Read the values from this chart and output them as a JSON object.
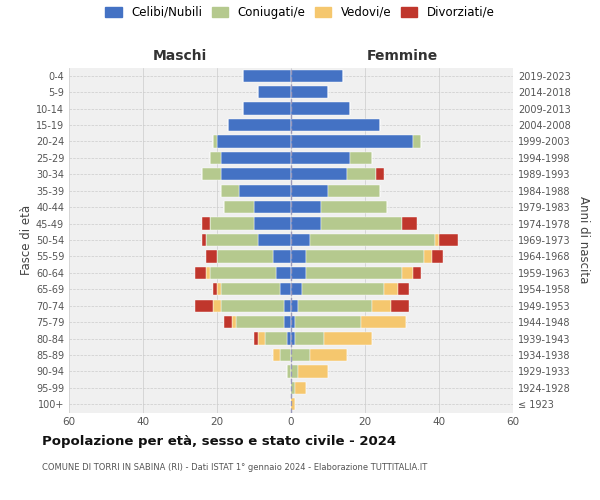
{
  "age_groups": [
    "100+",
    "95-99",
    "90-94",
    "85-89",
    "80-84",
    "75-79",
    "70-74",
    "65-69",
    "60-64",
    "55-59",
    "50-54",
    "45-49",
    "40-44",
    "35-39",
    "30-34",
    "25-29",
    "20-24",
    "15-19",
    "10-14",
    "5-9",
    "0-4"
  ],
  "birth_years": [
    "≤ 1923",
    "1924-1928",
    "1929-1933",
    "1934-1938",
    "1939-1943",
    "1944-1948",
    "1949-1953",
    "1954-1958",
    "1959-1963",
    "1964-1968",
    "1969-1973",
    "1974-1978",
    "1979-1983",
    "1984-1988",
    "1989-1993",
    "1994-1998",
    "1999-2003",
    "2004-2008",
    "2009-2013",
    "2014-2018",
    "2019-2023"
  ],
  "maschi": {
    "celibi": [
      0,
      0,
      0,
      0,
      1,
      2,
      2,
      3,
      4,
      5,
      9,
      10,
      10,
      14,
      19,
      19,
      20,
      17,
      13,
      9,
      13
    ],
    "coniugati": [
      0,
      0,
      1,
      3,
      6,
      13,
      17,
      16,
      18,
      15,
      14,
      12,
      8,
      5,
      5,
      3,
      1,
      0,
      0,
      0,
      0
    ],
    "vedovi": [
      0,
      0,
      0,
      2,
      2,
      1,
      2,
      1,
      1,
      0,
      0,
      0,
      0,
      0,
      0,
      0,
      0,
      0,
      0,
      0,
      0
    ],
    "divorziati": [
      0,
      0,
      0,
      0,
      1,
      2,
      5,
      1,
      3,
      3,
      1,
      2,
      0,
      0,
      0,
      0,
      0,
      0,
      0,
      0,
      0
    ]
  },
  "femmine": {
    "nubili": [
      0,
      0,
      0,
      0,
      1,
      1,
      2,
      3,
      4,
      4,
      5,
      8,
      8,
      10,
      15,
      16,
      33,
      24,
      16,
      10,
      14
    ],
    "coniugate": [
      0,
      1,
      2,
      5,
      8,
      18,
      20,
      22,
      26,
      32,
      34,
      22,
      18,
      14,
      8,
      6,
      2,
      0,
      0,
      0,
      0
    ],
    "vedove": [
      1,
      3,
      8,
      10,
      13,
      12,
      5,
      4,
      3,
      2,
      1,
      0,
      0,
      0,
      0,
      0,
      0,
      0,
      0,
      0,
      0
    ],
    "divorziate": [
      0,
      0,
      0,
      0,
      0,
      0,
      5,
      3,
      2,
      3,
      5,
      4,
      0,
      0,
      2,
      0,
      0,
      0,
      0,
      0,
      0
    ]
  },
  "colors": {
    "celibi_nubili": "#4472c4",
    "coniugati": "#b5c98e",
    "vedovi": "#f5c76e",
    "divorziati": "#c0362c"
  },
  "xlim": 60,
  "title": "Popolazione per età, sesso e stato civile - 2024",
  "subtitle": "COMUNE DI TORRI IN SABINA (RI) - Dati ISTAT 1° gennaio 2024 - Elaborazione TUTTITALIA.IT",
  "ylabel_left": "Fasce di età",
  "ylabel_right": "Anni di nascita",
  "xlabel_maschi": "Maschi",
  "xlabel_femmine": "Femmine",
  "legend_labels": [
    "Celibi/Nubili",
    "Coniugati/e",
    "Vedovi/e",
    "Divorziati/e"
  ],
  "bg_color": "#ffffff",
  "grid_color": "#cccccc",
  "bar_height": 0.75
}
